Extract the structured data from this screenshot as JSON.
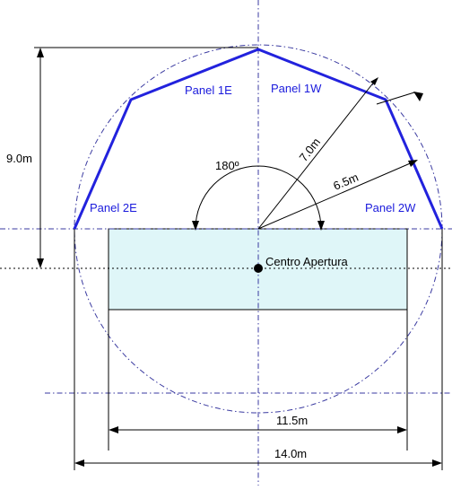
{
  "colors": {
    "panel_line": "#2222dd",
    "panel_label": "#1a1adc",
    "dashdot": "#3a3aa0",
    "aperture_fill": "#dff6f8",
    "ink": "#000000"
  },
  "labels": {
    "height_dim": "9.0m",
    "angle": "180º",
    "radius_outer": "7.0m",
    "radius_inner": "6.5m",
    "center": "Centro Apertura",
    "width_inner": "11.5m",
    "width_outer": "14.0m"
  },
  "panels": {
    "p1e": "Panel 1E",
    "p1w": "Panel 1W",
    "p2e": "Panel 2E",
    "p2w": "Panel 2W"
  }
}
